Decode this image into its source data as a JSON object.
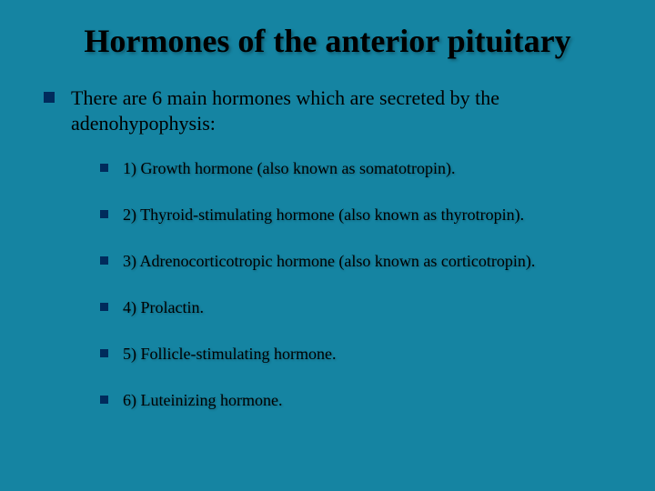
{
  "slide": {
    "title": "Hormones of the anterior pituitary",
    "intro": "There are 6 main hormones which are secreted by the adenohypophysis:",
    "items": [
      "1) Growth hormone (also known as somatotropin).",
      "2) Thyroid-stimulating hormone (also known as thyrotropin).",
      "3) Adrenocorticotropic hormone (also known as corticotropin).",
      "4) Prolactin.",
      "5) Follicle-stimulating hormone.",
      "6) Luteinizing hormone."
    ]
  },
  "style": {
    "background_color": "#1584a2",
    "bullet_color": "#002b5c",
    "title_fontsize": 36,
    "main_fontsize": 22,
    "sub_fontsize": 18,
    "font_family": "Times New Roman"
  }
}
